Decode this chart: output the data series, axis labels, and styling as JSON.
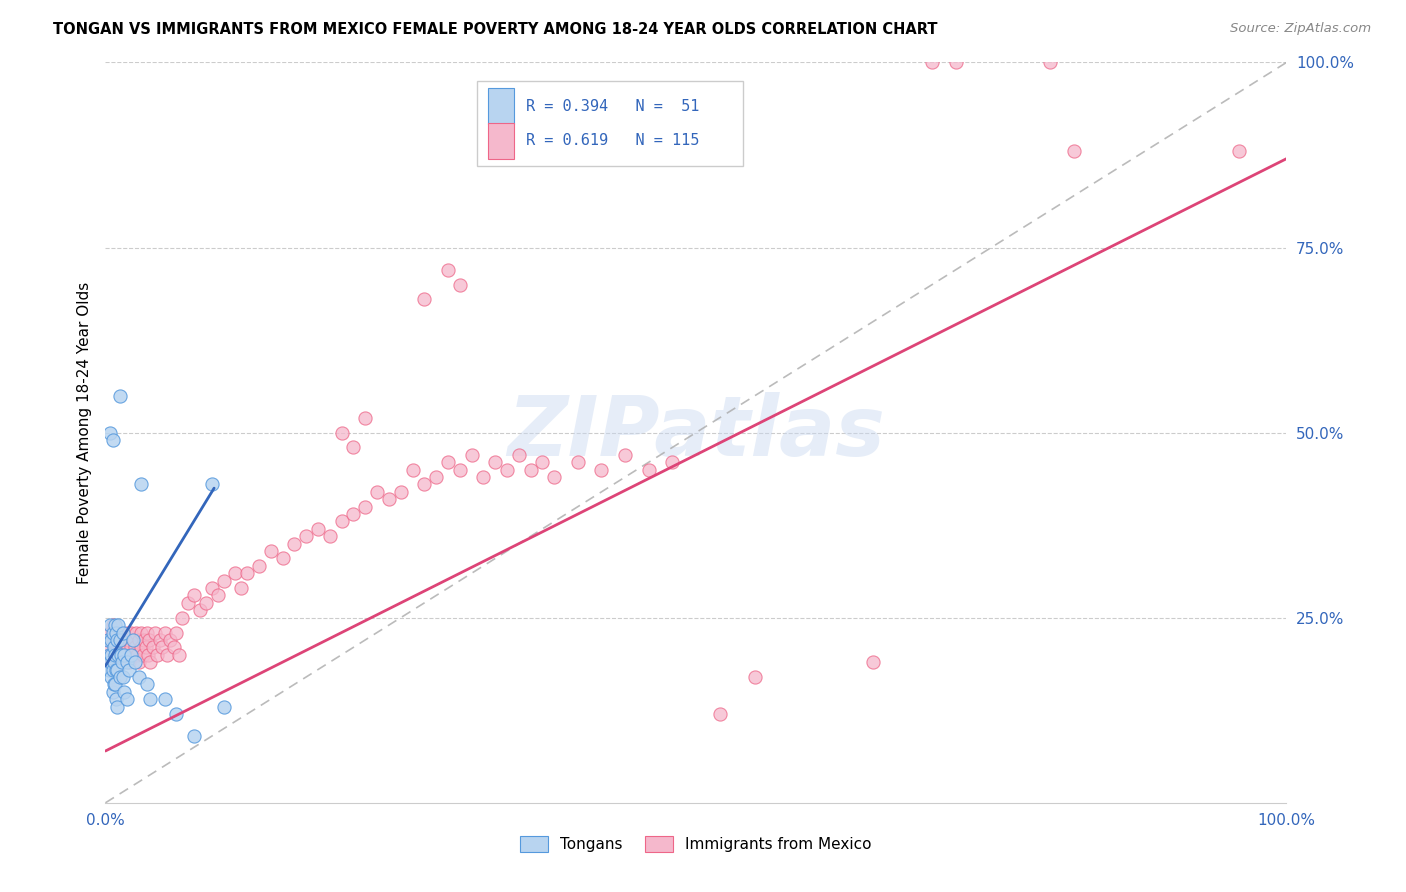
{
  "title": "TONGAN VS IMMIGRANTS FROM MEXICO FEMALE POVERTY AMONG 18-24 YEAR OLDS CORRELATION CHART",
  "source": "Source: ZipAtlas.com",
  "ylabel": "Female Poverty Among 18-24 Year Olds",
  "xlim": [
    0,
    1.0
  ],
  "ylim": [
    0,
    1.0
  ],
  "legend_label1": "Tongans",
  "legend_label2": "Immigrants from Mexico",
  "color_tongan_fill": "#b8d4f0",
  "color_tongan_edge": "#5599dd",
  "color_mexico_fill": "#f5b8cc",
  "color_mexico_edge": "#ee6688",
  "color_tongan_line": "#3366bb",
  "color_mexico_line": "#dd4477",
  "color_diagonal": "#aaaaaa",
  "watermark": "ZIPatlas",
  "tongan_points": [
    [
      0.002,
      0.22
    ],
    [
      0.003,
      0.2
    ],
    [
      0.003,
      0.18
    ],
    [
      0.004,
      0.24
    ],
    [
      0.004,
      0.19
    ],
    [
      0.005,
      0.22
    ],
    [
      0.005,
      0.2
    ],
    [
      0.005,
      0.17
    ],
    [
      0.006,
      0.23
    ],
    [
      0.006,
      0.18
    ],
    [
      0.006,
      0.15
    ],
    [
      0.007,
      0.21
    ],
    [
      0.007,
      0.19
    ],
    [
      0.007,
      0.16
    ],
    [
      0.008,
      0.24
    ],
    [
      0.008,
      0.2
    ],
    [
      0.008,
      0.16
    ],
    [
      0.009,
      0.23
    ],
    [
      0.009,
      0.18
    ],
    [
      0.009,
      0.14
    ],
    [
      0.01,
      0.22
    ],
    [
      0.01,
      0.18
    ],
    [
      0.01,
      0.13
    ],
    [
      0.011,
      0.24
    ],
    [
      0.011,
      0.2
    ],
    [
      0.012,
      0.22
    ],
    [
      0.012,
      0.17
    ],
    [
      0.013,
      0.2
    ],
    [
      0.014,
      0.19
    ],
    [
      0.015,
      0.23
    ],
    [
      0.015,
      0.17
    ],
    [
      0.016,
      0.2
    ],
    [
      0.016,
      0.15
    ],
    [
      0.018,
      0.19
    ],
    [
      0.018,
      0.14
    ],
    [
      0.02,
      0.18
    ],
    [
      0.022,
      0.2
    ],
    [
      0.023,
      0.22
    ],
    [
      0.025,
      0.19
    ],
    [
      0.028,
      0.17
    ],
    [
      0.004,
      0.5
    ],
    [
      0.006,
      0.49
    ],
    [
      0.012,
      0.55
    ],
    [
      0.03,
      0.43
    ],
    [
      0.035,
      0.16
    ],
    [
      0.038,
      0.14
    ],
    [
      0.05,
      0.14
    ],
    [
      0.06,
      0.12
    ],
    [
      0.075,
      0.09
    ],
    [
      0.09,
      0.43
    ],
    [
      0.1,
      0.13
    ]
  ],
  "mexico_points": [
    [
      0.002,
      0.22
    ],
    [
      0.003,
      0.21
    ],
    [
      0.004,
      0.23
    ],
    [
      0.005,
      0.2
    ],
    [
      0.005,
      0.19
    ],
    [
      0.006,
      0.22
    ],
    [
      0.006,
      0.24
    ],
    [
      0.007,
      0.2
    ],
    [
      0.007,
      0.23
    ],
    [
      0.008,
      0.21
    ],
    [
      0.008,
      0.19
    ],
    [
      0.009,
      0.22
    ],
    [
      0.009,
      0.2
    ],
    [
      0.01,
      0.21
    ],
    [
      0.01,
      0.23
    ],
    [
      0.011,
      0.2
    ],
    [
      0.012,
      0.22
    ],
    [
      0.012,
      0.19
    ],
    [
      0.013,
      0.21
    ],
    [
      0.013,
      0.23
    ],
    [
      0.014,
      0.2
    ],
    [
      0.015,
      0.22
    ],
    [
      0.015,
      0.19
    ],
    [
      0.016,
      0.21
    ],
    [
      0.017,
      0.22
    ],
    [
      0.018,
      0.2
    ],
    [
      0.018,
      0.23
    ],
    [
      0.019,
      0.21
    ],
    [
      0.02,
      0.22
    ],
    [
      0.02,
      0.19
    ],
    [
      0.022,
      0.21
    ],
    [
      0.022,
      0.23
    ],
    [
      0.023,
      0.2
    ],
    [
      0.024,
      0.22
    ],
    [
      0.025,
      0.21
    ],
    [
      0.026,
      0.23
    ],
    [
      0.027,
      0.2
    ],
    [
      0.028,
      0.22
    ],
    [
      0.028,
      0.19
    ],
    [
      0.03,
      0.21
    ],
    [
      0.03,
      0.23
    ],
    [
      0.032,
      0.2
    ],
    [
      0.033,
      0.22
    ],
    [
      0.034,
      0.21
    ],
    [
      0.035,
      0.23
    ],
    [
      0.036,
      0.2
    ],
    [
      0.037,
      0.22
    ],
    [
      0.038,
      0.19
    ],
    [
      0.04,
      0.21
    ],
    [
      0.042,
      0.23
    ],
    [
      0.044,
      0.2
    ],
    [
      0.046,
      0.22
    ],
    [
      0.048,
      0.21
    ],
    [
      0.05,
      0.23
    ],
    [
      0.052,
      0.2
    ],
    [
      0.055,
      0.22
    ],
    [
      0.058,
      0.21
    ],
    [
      0.06,
      0.23
    ],
    [
      0.062,
      0.2
    ],
    [
      0.065,
      0.25
    ],
    [
      0.07,
      0.27
    ],
    [
      0.075,
      0.28
    ],
    [
      0.08,
      0.26
    ],
    [
      0.085,
      0.27
    ],
    [
      0.09,
      0.29
    ],
    [
      0.095,
      0.28
    ],
    [
      0.1,
      0.3
    ],
    [
      0.11,
      0.31
    ],
    [
      0.115,
      0.29
    ],
    [
      0.12,
      0.31
    ],
    [
      0.13,
      0.32
    ],
    [
      0.14,
      0.34
    ],
    [
      0.15,
      0.33
    ],
    [
      0.16,
      0.35
    ],
    [
      0.17,
      0.36
    ],
    [
      0.18,
      0.37
    ],
    [
      0.19,
      0.36
    ],
    [
      0.2,
      0.38
    ],
    [
      0.21,
      0.39
    ],
    [
      0.22,
      0.4
    ],
    [
      0.23,
      0.42
    ],
    [
      0.24,
      0.41
    ],
    [
      0.25,
      0.42
    ],
    [
      0.2,
      0.5
    ],
    [
      0.21,
      0.48
    ],
    [
      0.22,
      0.52
    ],
    [
      0.26,
      0.45
    ],
    [
      0.27,
      0.43
    ],
    [
      0.28,
      0.44
    ],
    [
      0.29,
      0.46
    ],
    [
      0.3,
      0.45
    ],
    [
      0.31,
      0.47
    ],
    [
      0.32,
      0.44
    ],
    [
      0.33,
      0.46
    ],
    [
      0.34,
      0.45
    ],
    [
      0.35,
      0.47
    ],
    [
      0.36,
      0.45
    ],
    [
      0.37,
      0.46
    ],
    [
      0.38,
      0.44
    ],
    [
      0.4,
      0.46
    ],
    [
      0.42,
      0.45
    ],
    [
      0.44,
      0.47
    ],
    [
      0.46,
      0.45
    ],
    [
      0.48,
      0.46
    ],
    [
      0.27,
      0.68
    ],
    [
      0.3,
      0.7
    ],
    [
      0.29,
      0.72
    ],
    [
      0.55,
      0.17
    ],
    [
      0.52,
      0.12
    ],
    [
      0.65,
      0.19
    ],
    [
      0.7,
      1.0
    ],
    [
      0.72,
      1.0
    ],
    [
      0.8,
      1.0
    ],
    [
      0.82,
      0.88
    ],
    [
      0.96,
      0.88
    ]
  ],
  "tongan_line": [
    [
      0.0,
      0.185
    ],
    [
      0.092,
      0.425
    ]
  ],
  "mexico_line": [
    [
      0.0,
      0.07
    ],
    [
      1.0,
      0.87
    ]
  ]
}
